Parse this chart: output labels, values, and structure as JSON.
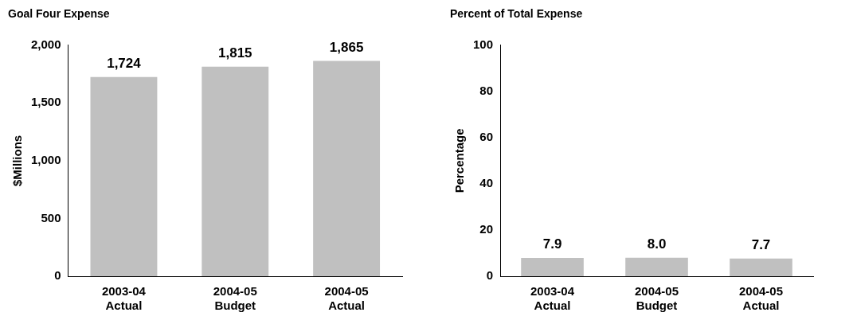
{
  "chart_data": [
    {
      "type": "bar",
      "title": "Goal Four Expense",
      "ylabel": "$Millions",
      "categories": [
        "2003-04 Actual",
        "2004-05 Budget",
        "2004-05 Actual"
      ],
      "values": [
        1724,
        1815,
        1865
      ],
      "value_labels": [
        "1,724",
        "1,815",
        "1,865"
      ],
      "color": "#c0c0c0",
      "ylim": [
        0,
        2000
      ],
      "yticks": [
        {
          "value": 0,
          "label": "0"
        },
        {
          "value": 500,
          "label": "500"
        },
        {
          "value": 1000,
          "label": "1,000"
        },
        {
          "value": 1500,
          "label": "1,500"
        },
        {
          "value": 2000,
          "label": "2,000"
        }
      ]
    },
    {
      "type": "bar",
      "title": "Percent of Total Expense",
      "ylabel": "Percentage",
      "categories": [
        "2003-04 Actual",
        "2004-05 Budget",
        "2004-05 Actual"
      ],
      "values": [
        7.9,
        8.0,
        7.7
      ],
      "value_labels": [
        "7.9",
        "8.0",
        "7.7"
      ],
      "color": "#c0c0c0",
      "ylim": [
        0,
        100
      ],
      "yticks": [
        0,
        20,
        40,
        60,
        80,
        100
      ]
    }
  ]
}
